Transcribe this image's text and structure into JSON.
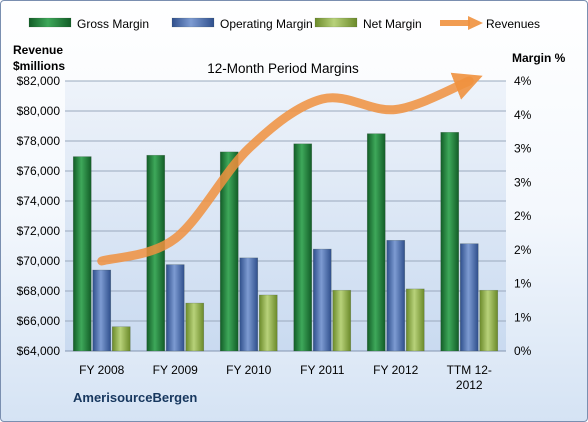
{
  "chart_data": {
    "type": "bar",
    "title": "12-Month Period Margins",
    "company": "AmerisourceBergen",
    "left_axis_label": [
      "Revenue",
      "$millions"
    ],
    "right_axis_label": "Margin %",
    "categories": [
      "FY 2008",
      "FY 2009",
      "FY 2010",
      "FY 2011",
      "FY 2012",
      "TTM 12-2012"
    ],
    "category_labels": [
      [
        "FY 2008"
      ],
      [
        "FY 2009"
      ],
      [
        "FY 2010"
      ],
      [
        "FY 2011"
      ],
      [
        "FY 2012"
      ],
      [
        "TTM 12-",
        "2012"
      ]
    ],
    "left_axis": {
      "min": 64000,
      "max": 82000,
      "step": 2000,
      "tick_labels": [
        "$64,000",
        "$66,000",
        "$68,000",
        "$70,000",
        "$72,000",
        "$74,000",
        "$76,000",
        "$78,000",
        "$80,000",
        "$82,000"
      ]
    },
    "right_axis": {
      "min": 0,
      "max": 4,
      "tick_labels": [
        "0%",
        "1%",
        "1%",
        "2%",
        "2%",
        "3%",
        "3%",
        "4%",
        "4%"
      ]
    },
    "series": [
      {
        "name": "Gross Margin",
        "type": "bar",
        "axis": "right",
        "color": "#1e7a36",
        "values": [
          2.88,
          2.9,
          2.95,
          3.07,
          3.22,
          3.24
        ]
      },
      {
        "name": "Operating Margin",
        "type": "bar",
        "axis": "right",
        "color": "#4a6eae",
        "values": [
          1.2,
          1.28,
          1.38,
          1.51,
          1.64,
          1.59
        ]
      },
      {
        "name": "Net Margin",
        "type": "bar",
        "axis": "right",
        "color": "#8fad44",
        "values": [
          0.36,
          0.71,
          0.83,
          0.9,
          0.92,
          0.9
        ]
      },
      {
        "name": "Revenues",
        "type": "line",
        "axis": "left",
        "color": "#f0913e",
        "values": [
          70000,
          71500,
          77500,
          80800,
          80100,
          82000
        ]
      }
    ],
    "grid": true,
    "legend_position": "top"
  }
}
